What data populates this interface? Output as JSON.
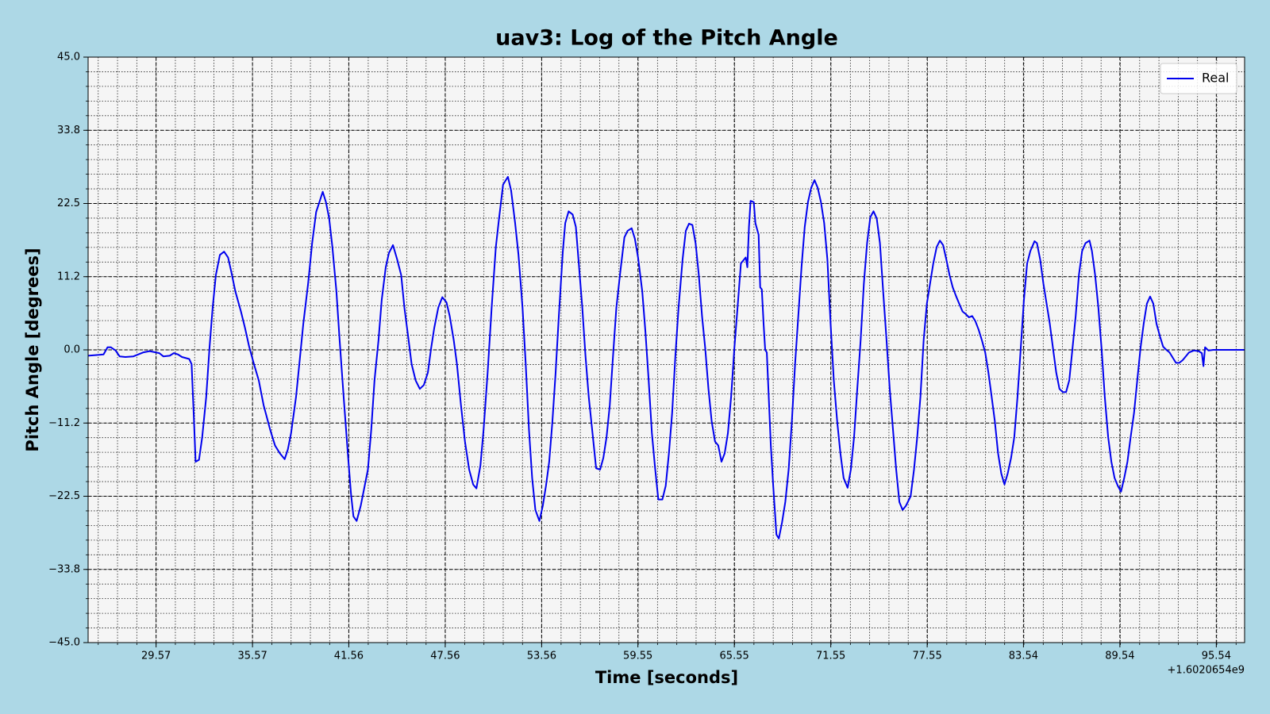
{
  "chart_data": {
    "type": "line",
    "title": "uav3: Log of the Pitch Angle",
    "x_label": "Time [seconds]",
    "y_label": "Pitch Angle [degrees]",
    "x_offset_text": "+1.6020654e9",
    "xlim": [
      25.34,
      97.3
    ],
    "ylim": [
      -45,
      45
    ],
    "xticks": [
      29.57,
      35.57,
      41.56,
      47.56,
      53.56,
      59.55,
      65.55,
      71.55,
      77.55,
      83.54,
      89.54,
      95.54
    ],
    "yticks": [
      {
        "value": 45,
        "label": "45.0"
      },
      {
        "value": 33.75,
        "label": "33.8"
      },
      {
        "value": 22.5,
        "label": "22.5"
      },
      {
        "value": 11.25,
        "label": "11.2"
      },
      {
        "value": 0,
        "label": "0.0"
      },
      {
        "value": -11.25,
        "label": "−11.2"
      },
      {
        "value": -22.5,
        "label": "−22.5"
      },
      {
        "value": -33.75,
        "label": "−33.8"
      },
      {
        "value": -45,
        "label": "−45.0"
      }
    ],
    "grid": true,
    "minor_grid": true,
    "legend": "upper right",
    "x": [
      25.34,
      26.3,
      26.55,
      26.75,
      27.05,
      27.3,
      27.66,
      28.16,
      28.76,
      29.17,
      29.77,
      30.02,
      30.42,
      30.67,
      30.93,
      31.18,
      31.63,
      31.78,
      31.93,
      32.03,
      32.24,
      32.44,
      32.69,
      32.89,
      33.09,
      33.29,
      33.54,
      33.8,
      34.05,
      34.25,
      34.5,
      34.85,
      35.1,
      35.36,
      35.66,
      35.96,
      36.26,
      36.66,
      36.97,
      37.27,
      37.57,
      37.77,
      37.97,
      38.28,
      38.53,
      38.73,
      39.03,
      39.28,
      39.53,
      39.73,
      39.94,
      40.14,
      40.34,
      40.54,
      40.79,
      40.99,
      41.24,
      41.5,
      41.7,
      41.85,
      42.05,
      42.3,
      42.55,
      42.75,
      42.96,
      43.16,
      43.41,
      43.61,
      43.86,
      44.06,
      44.31,
      44.57,
      44.82,
      45.02,
      45.22,
      45.47,
      45.72,
      45.98,
      46.23,
      46.48,
      46.68,
      46.88,
      47.13,
      47.38,
      47.64,
      47.84,
      48.09,
      48.29,
      48.54,
      48.79,
      49.05,
      49.3,
      49.5,
      49.75,
      49.95,
      50.2,
      50.45,
      50.71,
      50.91,
      51.16,
      51.46,
      51.66,
      51.91,
      52.12,
      52.37,
      52.57,
      52.77,
      52.97,
      53.17,
      53.42,
      53.63,
      53.83,
      54.03,
      54.23,
      54.43,
      54.63,
      54.88,
      55.03,
      55.24,
      55.49,
      55.69,
      55.89,
      56.09,
      56.29,
      56.49,
      56.75,
      56.95,
      57.2,
      57.4,
      57.6,
      57.8,
      58.0,
      58.21,
      58.46,
      58.71,
      58.91,
      59.16,
      59.36,
      59.56,
      59.82,
      60.02,
      60.22,
      60.42,
      60.62,
      60.82,
      61.07,
      61.28,
      61.48,
      61.68,
      61.88,
      62.08,
      62.33,
      62.53,
      62.73,
      62.94,
      63.14,
      63.34,
      63.54,
      63.74,
      63.94,
      64.14,
      64.35,
      64.55,
      64.75,
      64.95,
      65.15,
      65.35,
      65.55,
      65.75,
      65.96,
      66.16,
      66.26,
      66.36,
      66.46,
      66.56,
      66.76,
      66.86,
      67.06,
      67.16,
      67.26,
      67.37,
      67.47,
      67.57,
      67.67,
      67.82,
      67.97,
      68.17,
      68.32,
      68.52,
      68.72,
      68.93,
      69.13,
      69.33,
      69.53,
      69.73,
      69.93,
      70.13,
      70.33,
      70.54,
      70.74,
      70.94,
      71.14,
      71.34,
      71.54,
      71.74,
      71.95,
      72.15,
      72.35,
      72.6,
      72.8,
      73.0,
      73.2,
      73.41,
      73.61,
      73.81,
      74.01,
      74.21,
      74.41,
      74.61,
      74.81,
      75.02,
      75.22,
      75.42,
      75.62,
      75.82,
      76.02,
      76.22,
      76.52,
      76.73,
      76.93,
      77.13,
      77.33,
      77.53,
      77.73,
      77.93,
      78.14,
      78.34,
      78.54,
      78.74,
      78.94,
      79.14,
      79.34,
      79.54,
      79.75,
      79.95,
      80.15,
      80.35,
      80.55,
      80.75,
      80.95,
      81.16,
      81.36,
      81.56,
      81.76,
      81.96,
      82.16,
      82.36,
      82.56,
      82.77,
      82.97,
      83.17,
      83.37,
      83.57,
      83.77,
      83.97,
      84.23,
      84.38,
      84.58,
      84.78,
      84.98,
      85.18,
      85.38,
      85.58,
      85.78,
      85.99,
      86.19,
      86.39,
      86.59,
      86.79,
      86.99,
      87.19,
      87.4,
      87.65,
      87.8,
      88.0,
      88.2,
      88.4,
      88.6,
      88.81,
      89.01,
      89.21,
      89.41,
      89.61,
      89.81,
      90.01,
      90.21,
      90.42,
      90.62,
      90.82,
      91.02,
      91.22,
      91.42,
      91.62,
      91.82,
      92.03,
      92.23,
      92.43,
      92.63,
      92.83,
      93.03,
      93.23,
      93.44,
      93.64,
      93.84,
      94.14,
      94.44,
      94.64,
      94.74,
      94.84,
      95.05,
      95.35,
      97.3
    ],
    "series": [
      {
        "name": "Real",
        "color": "#0000ee",
        "values": [
          -0.9,
          -0.7,
          0.4,
          0.4,
          -0.1,
          -1.0,
          -1.1,
          -1.0,
          -0.4,
          -0.2,
          -0.5,
          -1.0,
          -0.9,
          -0.5,
          -0.7,
          -1.1,
          -1.4,
          -2.2,
          -11.0,
          -17.2,
          -16.9,
          -13.4,
          -7.2,
          0.2,
          6.5,
          11.5,
          14.6,
          15.1,
          14.2,
          12.0,
          9.0,
          5.9,
          3.4,
          0.5,
          -2.2,
          -4.7,
          -8.5,
          -12.2,
          -14.7,
          -15.9,
          -16.8,
          -15.3,
          -12.8,
          -7.2,
          -1.0,
          4.0,
          10.2,
          16.4,
          21.2,
          22.7,
          24.3,
          22.7,
          20.2,
          15.8,
          9.0,
          1.5,
          -7.2,
          -15.9,
          -22.2,
          -25.6,
          -26.3,
          -24.0,
          -20.9,
          -18.4,
          -12.2,
          -4.7,
          1.5,
          7.7,
          12.7,
          14.9,
          16.1,
          13.9,
          11.5,
          6.5,
          2.7,
          -2.2,
          -4.7,
          -6.0,
          -5.4,
          -3.5,
          0.2,
          3.4,
          6.5,
          8.1,
          7.3,
          5.2,
          1.5,
          -2.2,
          -8.5,
          -14.1,
          -18.4,
          -20.7,
          -21.3,
          -17.8,
          -12.2,
          -3.5,
          6.5,
          15.8,
          20.2,
          25.4,
          26.6,
          24.5,
          19.5,
          14.6,
          6.5,
          -2.2,
          -12.2,
          -19.7,
          -24.6,
          -26.3,
          -24.0,
          -20.9,
          -17.2,
          -11.0,
          -3.5,
          5.2,
          15.2,
          19.5,
          21.3,
          20.8,
          18.9,
          12.7,
          6.5,
          -1.0,
          -7.2,
          -13.4,
          -18.2,
          -18.4,
          -16.6,
          -13.4,
          -8.5,
          -1.0,
          6.5,
          12.1,
          17.3,
          18.3,
          18.7,
          17.1,
          14.2,
          9.0,
          2.7,
          -4.7,
          -12.8,
          -18.2,
          -23.0,
          -23.0,
          -20.9,
          -15.9,
          -9.7,
          -1.0,
          6.5,
          13.9,
          18.3,
          19.4,
          19.2,
          16.4,
          11.5,
          5.2,
          0.2,
          -6.0,
          -11.0,
          -14.1,
          -14.7,
          -17.2,
          -15.9,
          -12.8,
          -7.2,
          0.2,
          6.5,
          13.3,
          13.9,
          14.2,
          12.7,
          18.9,
          22.9,
          22.7,
          19.5,
          17.7,
          9.6,
          9.3,
          4.0,
          0.0,
          -0.4,
          -6.0,
          -14.7,
          -20.9,
          -28.4,
          -29.0,
          -26.5,
          -23.4,
          -18.4,
          -11.0,
          -2.2,
          5.2,
          12.7,
          18.9,
          22.7,
          24.9,
          26.1,
          24.9,
          22.7,
          19.5,
          13.9,
          4.0,
          -4.7,
          -11.0,
          -15.9,
          -19.7,
          -21.2,
          -18.4,
          -13.4,
          -6.0,
          1.5,
          10.2,
          16.4,
          20.4,
          21.3,
          20.2,
          16.4,
          9.0,
          1.5,
          -6.0,
          -12.2,
          -18.4,
          -23.4,
          -24.6,
          -24.0,
          -22.5,
          -18.4,
          -13.4,
          -7.2,
          1.5,
          7.1,
          10.2,
          13.3,
          15.8,
          16.8,
          16.1,
          13.9,
          11.5,
          9.6,
          8.3,
          7.1,
          5.9,
          5.5,
          5.0,
          5.2,
          4.4,
          3.1,
          1.5,
          -0.4,
          -3.5,
          -7.2,
          -11.0,
          -15.9,
          -19.0,
          -20.7,
          -19.0,
          -16.6,
          -13.4,
          -7.2,
          0.2,
          7.7,
          13.3,
          15.2,
          16.7,
          16.4,
          13.9,
          10.2,
          7.1,
          4.0,
          0.2,
          -3.5,
          -6.0,
          -6.5,
          -6.5,
          -4.7,
          0.2,
          5.2,
          11.5,
          15.2,
          16.4,
          16.8,
          15.2,
          11.5,
          6.5,
          0.2,
          -7.2,
          -13.4,
          -17.2,
          -19.7,
          -20.9,
          -21.8,
          -19.7,
          -17.2,
          -13.4,
          -9.7,
          -4.7,
          0.2,
          4.0,
          7.1,
          8.2,
          7.1,
          4.0,
          2.1,
          0.5,
          0.0,
          -0.4,
          -1.2,
          -2.0,
          -2.0,
          -1.6,
          -1.0,
          -0.4,
          -0.1,
          -0.2,
          -0.5,
          -2.5,
          0.4,
          -0.1,
          0.0,
          0.0
        ]
      }
    ]
  }
}
